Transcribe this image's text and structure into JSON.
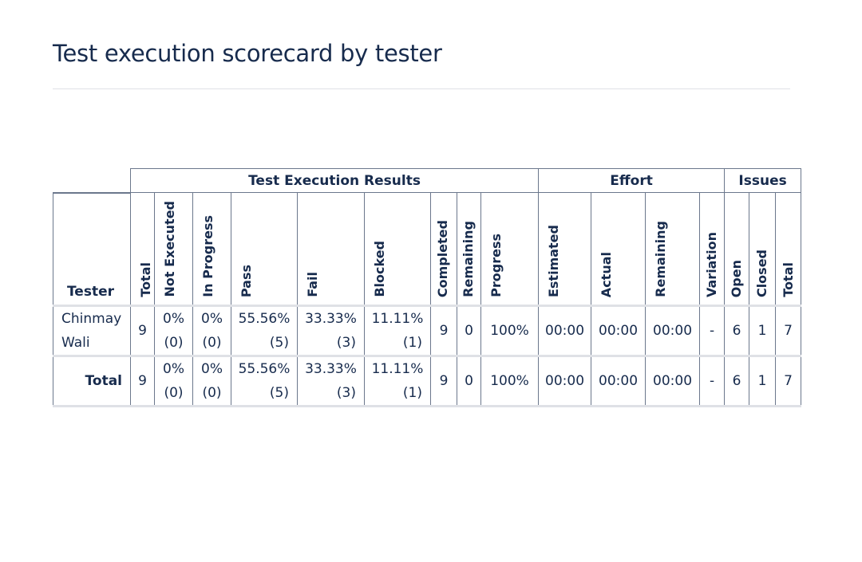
{
  "page": {
    "title": "Test execution scorecard by tester"
  },
  "table": {
    "groups": {
      "results": "Test Execution Results",
      "effort": "Effort",
      "issues": "Issues"
    },
    "columns": {
      "tester": "Tester",
      "total": "Total",
      "not_executed": "Not Executed",
      "in_progress": "In Progress",
      "pass": "Pass",
      "fail": "Fail",
      "blocked": "Blocked",
      "completed": "Completed",
      "remaining": "Remaining",
      "progress": "Progress",
      "estimated": "Estimated",
      "actual": "Actual",
      "effort_remaining": "Remaining",
      "variation": "Variation",
      "open": "Open",
      "closed": "Closed",
      "issues_total": "Total"
    },
    "rows": [
      {
        "tester_line1": "Chinmay",
        "tester_line2": "Wali",
        "total": "9",
        "not_executed_pct": "0%",
        "not_executed_count": "(0)",
        "in_progress_pct": "0%",
        "in_progress_count": "(0)",
        "pass_pct": "55.56%",
        "pass_count": "(5)",
        "fail_pct": "33.33%",
        "fail_count": "(3)",
        "blocked_pct": "11.11%",
        "blocked_count": "(1)",
        "completed": "9",
        "remaining": "0",
        "progress": "100%",
        "estimated": "00:00",
        "actual": "00:00",
        "effort_remaining": "00:00",
        "variation": "-",
        "open": "6",
        "closed": "1",
        "issues_total": "7"
      }
    ],
    "total_row": {
      "label": "Total",
      "total": "9",
      "not_executed_pct": "0%",
      "not_executed_count": "(0)",
      "in_progress_pct": "0%",
      "in_progress_count": "(0)",
      "pass_pct": "55.56%",
      "pass_count": "(5)",
      "fail_pct": "33.33%",
      "fail_count": "(3)",
      "blocked_pct": "11.11%",
      "blocked_count": "(1)",
      "completed": "9",
      "remaining": "0",
      "progress": "100%",
      "estimated": "00:00",
      "actual": "00:00",
      "effort_remaining": "00:00",
      "variation": "-",
      "open": "6",
      "closed": "1",
      "issues_total": "7"
    }
  },
  "colors": {
    "text": "#172b4d",
    "border": "#6b778c",
    "rule": "#dfe1e6",
    "background": "#ffffff"
  }
}
